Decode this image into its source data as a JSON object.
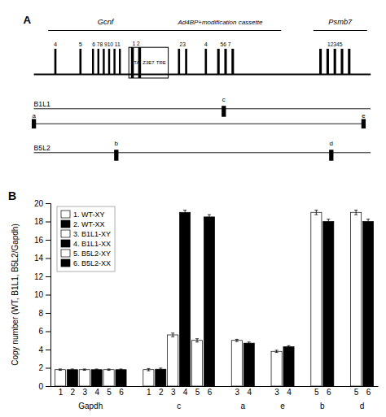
{
  "chart_data": [
    {
      "type": "diagram",
      "annotations": [
        "A",
        "Gcnf",
        "Ad4BP+modification cassette",
        "Psmb7",
        "4",
        "5",
        "6 78 910 11",
        "ITA",
        "Z3E7",
        "TRE",
        "1 2",
        "23",
        "4",
        "56 7",
        "12345",
        "B1L1",
        "c",
        "a",
        "e",
        "B5L2",
        "b",
        "d"
      ]
    },
    {
      "type": "bar",
      "annotations": [
        "B"
      ],
      "categories": [
        "Gapdh",
        "c",
        "a",
        "e",
        "b",
        "d"
      ],
      "series": [
        {
          "name": "1. WT-XY",
          "color": "white",
          "bar_label": "1",
          "values": [
            1.8,
            1.8,
            null,
            null,
            null,
            null
          ],
          "errors": [
            0.07,
            0.12,
            null,
            null,
            null,
            null
          ]
        },
        {
          "name": "2. WT-XX",
          "color": "black",
          "bar_label": "2",
          "values": [
            1.8,
            1.85,
            null,
            null,
            null,
            null
          ],
          "errors": [
            0.07,
            0.12,
            null,
            null,
            null,
            null
          ]
        },
        {
          "name": "3. B1L1-XY",
          "color": "white",
          "bar_label": "3",
          "values": [
            1.8,
            5.6,
            5.0,
            3.8,
            null,
            null
          ],
          "errors": [
            0.07,
            0.2,
            0.12,
            0.12,
            null,
            null
          ]
        },
        {
          "name": "4. B1L1-XX",
          "color": "black",
          "bar_label": "4",
          "values": [
            1.8,
            19.0,
            4.7,
            4.3,
            null,
            null
          ],
          "errors": [
            0.07,
            0.25,
            0.12,
            0.12,
            null,
            null
          ]
        },
        {
          "name": "5. B5L2-XY",
          "color": "white",
          "bar_label": "5",
          "values": [
            1.8,
            5.0,
            null,
            null,
            19.0,
            19.0
          ],
          "errors": [
            0.07,
            0.18,
            null,
            null,
            0.25,
            0.25
          ]
        },
        {
          "name": "6. B5L2-XX",
          "color": "black",
          "bar_label": "6",
          "values": [
            1.8,
            18.5,
            null,
            null,
            18.0,
            18.0
          ],
          "errors": [
            0.07,
            0.25,
            null,
            null,
            0.25,
            0.25
          ]
        }
      ],
      "ylabel": "Copy number (WT, B1L1, B5L2/Gapdh)",
      "ylim": [
        0,
        20
      ],
      "yticks": [
        0,
        2,
        4,
        6,
        8,
        10,
        12,
        14,
        16,
        18,
        20
      ],
      "grid": false,
      "legend": "upper left"
    }
  ]
}
